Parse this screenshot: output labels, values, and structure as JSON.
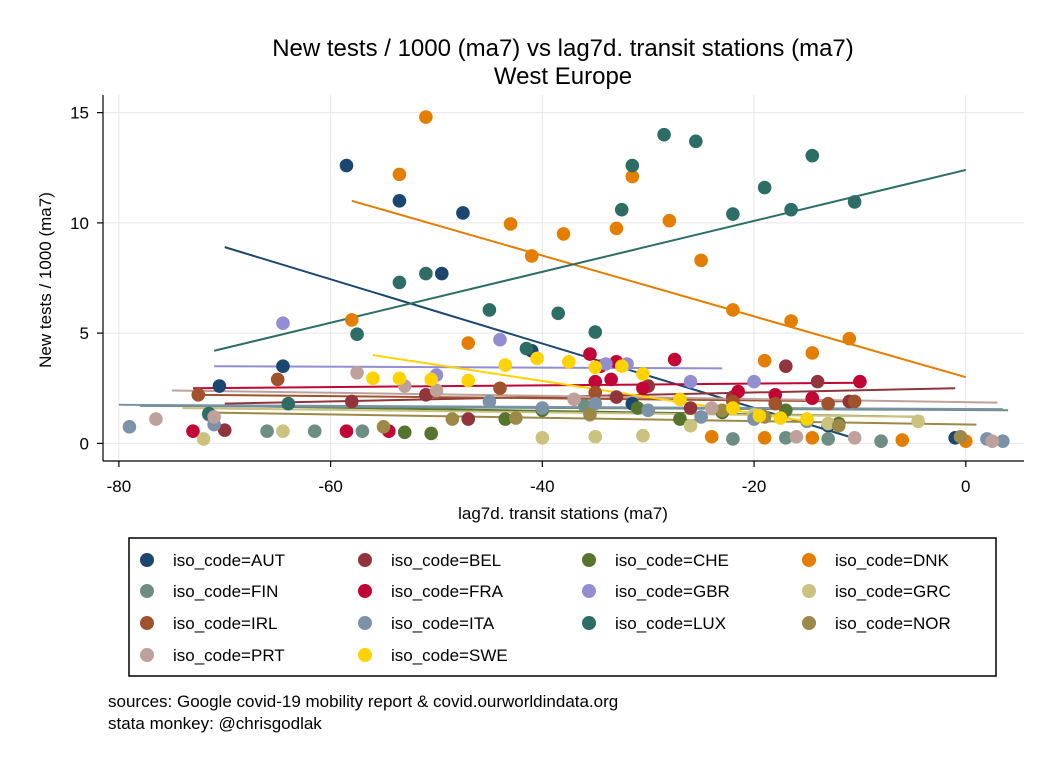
{
  "chart_data": {
    "type": "scatter",
    "title": "New tests / 1000 (ma7) vs lag7d. transit stations (ma7)",
    "subtitle": "West Europe",
    "xlabel": "lag7d. transit stations (ma7)",
    "ylabel": "New tests / 1000 (ma7)",
    "xlim": [
      -81.5,
      5.5
    ],
    "ylim": [
      -0.8,
      15.8
    ],
    "xticks": [
      -80,
      -60,
      -40,
      -20,
      0
    ],
    "yticks": [
      0,
      5,
      10,
      15
    ],
    "grid": true,
    "legend_position": "bottom",
    "series": [
      {
        "name": "iso_code=AUT",
        "color": "#1a476f",
        "points": [
          [
            -58.5,
            12.6
          ],
          [
            -53.5,
            11.0
          ],
          [
            -47.5,
            10.45
          ],
          [
            -49.5,
            7.7
          ],
          [
            -70.5,
            2.6
          ],
          [
            -64.5,
            3.5
          ],
          [
            -41,
            4.2
          ],
          [
            -31.5,
            1.8
          ],
          [
            -13,
            0.8
          ],
          [
            -1,
            0.25
          ]
        ],
        "fit": [
          [
            -70,
            8.9
          ],
          [
            -11,
            0.3
          ]
        ]
      },
      {
        "name": "iso_code=BEL",
        "color": "#90353b",
        "points": [
          [
            -70,
            0.6
          ],
          [
            -58,
            1.9
          ],
          [
            -51,
            2.2
          ],
          [
            -47,
            1.1
          ],
          [
            -33,
            2.1
          ],
          [
            -30,
            2.6
          ],
          [
            -26,
            1.6
          ],
          [
            -22,
            2.1
          ],
          [
            -17,
            3.5
          ],
          [
            -14,
            2.8
          ],
          [
            -11,
            1.9
          ]
        ],
        "fit": [
          [
            -70,
            1.8
          ],
          [
            -1,
            2.5
          ]
        ]
      },
      {
        "name": "iso_code=CHE",
        "color": "#55752f",
        "points": [
          [
            -53,
            0.5
          ],
          [
            -50.5,
            0.45
          ],
          [
            -43.5,
            1.1
          ],
          [
            -40,
            1.5
          ],
          [
            -31,
            1.6
          ],
          [
            -27,
            1.1
          ],
          [
            -23,
            1.4
          ],
          [
            -17,
            1.5
          ],
          [
            -12,
            0.9
          ]
        ],
        "fit": [
          [
            -70,
            1.7
          ],
          [
            -4,
            1.2
          ]
        ]
      },
      {
        "name": "iso_code=DNK",
        "color": "#e37e00",
        "points": [
          [
            -51,
            14.8
          ],
          [
            -53.5,
            12.2
          ],
          [
            -31.5,
            12.1
          ],
          [
            -28,
            10.1
          ],
          [
            -43,
            9.95
          ],
          [
            -33,
            9.75
          ],
          [
            -38,
            9.5
          ],
          [
            -41,
            8.5
          ],
          [
            -25,
            8.3
          ],
          [
            -22,
            6.05
          ],
          [
            -16.5,
            5.55
          ],
          [
            -58,
            5.6
          ],
          [
            -47,
            4.55
          ],
          [
            -11,
            4.75
          ],
          [
            -14.5,
            4.1
          ],
          [
            -19,
            3.75
          ],
          [
            -24,
            0.3
          ],
          [
            -19,
            0.25
          ],
          [
            -14.5,
            0.25
          ],
          [
            -6,
            0.15
          ],
          [
            0,
            0.1
          ]
        ],
        "fit": [
          [
            -58,
            11.0
          ],
          [
            0,
            3.0
          ]
        ]
      },
      {
        "name": "iso_code=FIN",
        "color": "#6e8e84",
        "points": [
          [
            -71.5,
            1.3
          ],
          [
            -66,
            0.55
          ],
          [
            -61.5,
            0.55
          ],
          [
            -57,
            0.55
          ],
          [
            -36,
            1.7
          ],
          [
            -22,
            0.2
          ],
          [
            -17,
            0.25
          ],
          [
            -13,
            0.2
          ],
          [
            -8,
            0.1
          ]
        ],
        "fit": [
          [
            -78,
            1.7
          ],
          [
            4,
            1.5
          ]
        ]
      },
      {
        "name": "iso_code=FRA",
        "color": "#c10534",
        "points": [
          [
            -73,
            0.55
          ],
          [
            -58.5,
            0.55
          ],
          [
            -54.5,
            0.55
          ],
          [
            -35.5,
            4.05
          ],
          [
            -33,
            3.7
          ],
          [
            -34.5,
            3.5
          ],
          [
            -33.5,
            2.9
          ],
          [
            -35,
            2.8
          ],
          [
            -27.5,
            3.8
          ],
          [
            -30.5,
            2.5
          ],
          [
            -21.5,
            2.35
          ],
          [
            -18,
            2.2
          ],
          [
            -14.5,
            2.05
          ],
          [
            -10,
            2.8
          ]
        ],
        "fit": [
          [
            -73,
            2.5
          ],
          [
            -10,
            2.75
          ]
        ]
      },
      {
        "name": "iso_code=GBR",
        "color": "#938dd2",
        "points": [
          [
            -64.5,
            5.45
          ],
          [
            -44,
            4.7
          ],
          [
            -50,
            3.1
          ],
          [
            -34,
            3.6
          ],
          [
            -32,
            3.6
          ],
          [
            -26,
            2.8
          ],
          [
            -20,
            2.8
          ]
        ],
        "fit": [
          [
            -71,
            3.5
          ],
          [
            -23,
            3.4
          ]
        ]
      },
      {
        "name": "iso_code=GRC",
        "color": "#cac27e",
        "points": [
          [
            -72,
            0.2
          ],
          [
            -64.5,
            0.55
          ],
          [
            -40,
            0.25
          ],
          [
            -35,
            0.3
          ],
          [
            -30.5,
            0.35
          ],
          [
            -26,
            0.8
          ],
          [
            -20,
            1.3
          ],
          [
            -13,
            0.9
          ],
          [
            -4.5,
            1.0
          ]
        ],
        "fit": [
          [
            -74,
            1.6
          ],
          [
            -4,
            1.2
          ]
        ]
      },
      {
        "name": "iso_code=IRL",
        "color": "#a0522d",
        "points": [
          [
            -72.5,
            2.2
          ],
          [
            -65,
            2.9
          ],
          [
            -44,
            2.5
          ],
          [
            -35,
            2.3
          ],
          [
            -22,
            1.9
          ],
          [
            -18,
            1.8
          ],
          [
            -13,
            1.8
          ],
          [
            -10.5,
            1.9
          ]
        ],
        "fit": [
          [
            -72,
            2.2
          ],
          [
            -10,
            1.9
          ]
        ]
      },
      {
        "name": "iso_code=ITA",
        "color": "#7b92a8",
        "points": [
          [
            -79,
            0.75
          ],
          [
            -71,
            0.85
          ],
          [
            -45,
            1.9
          ],
          [
            -40,
            1.6
          ],
          [
            -35,
            1.8
          ],
          [
            -30,
            1.5
          ],
          [
            -25,
            1.2
          ],
          [
            -20,
            1.1
          ],
          [
            -15,
            1.0
          ],
          [
            2,
            0.2
          ],
          [
            3.5,
            0.1
          ]
        ],
        "fit": [
          [
            -80,
            1.75
          ],
          [
            3.5,
            1.55
          ]
        ]
      },
      {
        "name": "iso_code=LUX",
        "color": "#2d6d66",
        "points": [
          [
            -28.5,
            14.0
          ],
          [
            -25.5,
            13.7
          ],
          [
            -14.5,
            13.05
          ],
          [
            -31.5,
            12.6
          ],
          [
            -32.5,
            10.6
          ],
          [
            -19,
            11.6
          ],
          [
            -16.5,
            10.6
          ],
          [
            -10.5,
            10.95
          ],
          [
            -22,
            10.4
          ],
          [
            -51,
            7.7
          ],
          [
            -53.5,
            7.3
          ],
          [
            -45,
            6.05
          ],
          [
            -38.5,
            5.9
          ],
          [
            -35,
            5.05
          ],
          [
            -57.5,
            4.95
          ],
          [
            -41.5,
            4.3
          ],
          [
            -71.5,
            1.35
          ],
          [
            -64,
            1.8
          ]
        ],
        "fit": [
          [
            -71,
            4.2
          ],
          [
            0,
            12.4
          ]
        ]
      },
      {
        "name": "iso_code=NOR",
        "color": "#9c8847",
        "points": [
          [
            -55,
            0.75
          ],
          [
            -48.5,
            1.1
          ],
          [
            -42.5,
            1.15
          ],
          [
            -35.5,
            1.3
          ],
          [
            -23,
            1.5
          ],
          [
            -19,
            1.2
          ],
          [
            -12,
            0.8
          ],
          [
            -0.5,
            0.3
          ]
        ],
        "fit": [
          [
            -72,
            1.4
          ],
          [
            1,
            0.85
          ]
        ]
      },
      {
        "name": "iso_code=PRT",
        "color": "#bfa19c",
        "points": [
          [
            -76.5,
            1.1
          ],
          [
            -71,
            1.2
          ],
          [
            -57.5,
            3.2
          ],
          [
            -53,
            2.6
          ],
          [
            -50,
            2.4
          ],
          [
            -37,
            2.0
          ],
          [
            -24,
            1.6
          ],
          [
            -16,
            0.3
          ],
          [
            -10.5,
            0.25
          ],
          [
            2.5,
            0.1
          ]
        ],
        "fit": [
          [
            -75,
            2.4
          ],
          [
            3,
            1.85
          ]
        ]
      },
      {
        "name": "iso_code=SWE",
        "color": "#ffd200",
        "points": [
          [
            -56,
            2.95
          ],
          [
            -53.5,
            2.95
          ],
          [
            -50.5,
            2.9
          ],
          [
            -47,
            2.85
          ],
          [
            -43.5,
            3.55
          ],
          [
            -40.5,
            3.85
          ],
          [
            -37.5,
            3.7
          ],
          [
            -35,
            3.45
          ],
          [
            -32.5,
            3.5
          ],
          [
            -30.5,
            3.15
          ],
          [
            -27,
            2.0
          ],
          [
            -22,
            1.6
          ],
          [
            -19.5,
            1.25
          ],
          [
            -17.5,
            1.15
          ],
          [
            -15,
            1.1
          ]
        ],
        "fit": [
          [
            -56,
            4.0
          ],
          [
            -15,
            1.0
          ]
        ]
      }
    ],
    "notes": [
      "sources: Google covid-19 mobility report & covid.ourworldindata.org",
      "stata monkey: @chrisgodlak"
    ]
  }
}
